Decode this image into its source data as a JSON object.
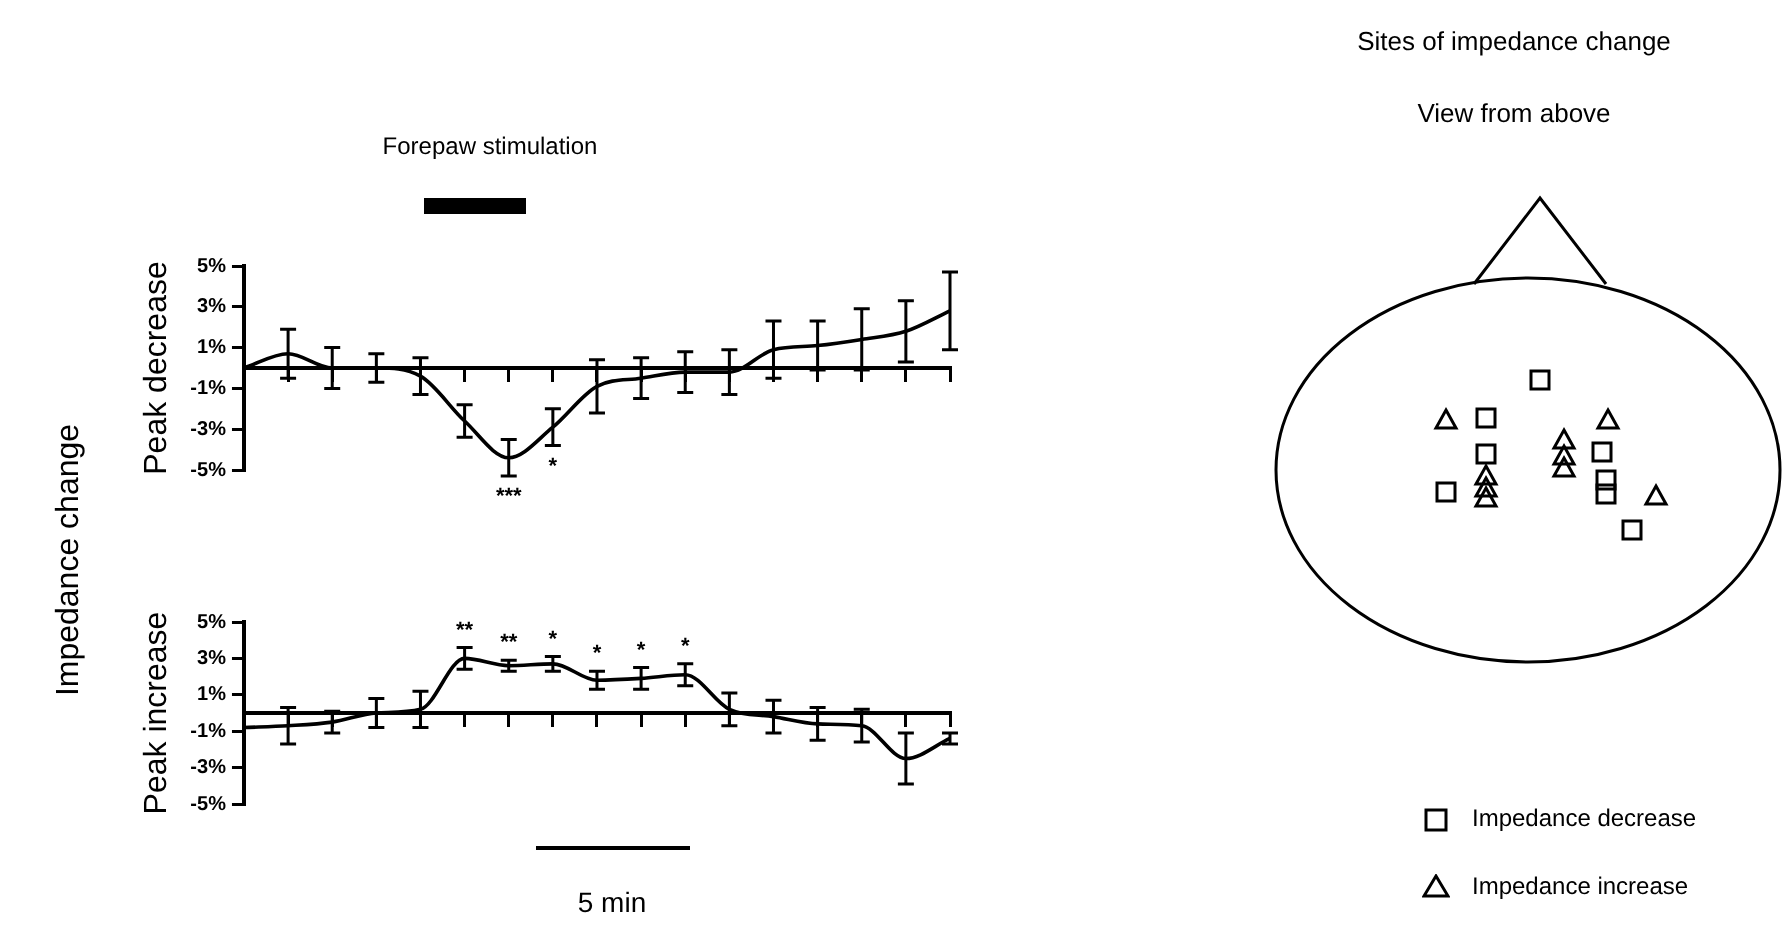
{
  "chart_data": [
    {
      "type": "line",
      "ylabel": "Peak decrease",
      "categories": [
        null,
        null,
        null,
        null,
        null,
        null,
        null,
        null,
        null,
        null,
        null,
        null,
        null,
        null,
        null,
        null,
        null
      ],
      "series": [
        {
          "color": "#000000",
          "values": [
            0,
            0.7,
            0,
            0,
            -0.4,
            -2.6,
            -4.4,
            -2.9,
            -0.9,
            -0.5,
            -0.2,
            -0.2,
            0.9,
            1.1,
            1.4,
            1.8,
            2.8
          ],
          "errors": [
            null,
            1.2,
            1.0,
            0.7,
            0.9,
            0.8,
            0.9,
            0.9,
            1.3,
            1.0,
            1.0,
            1.1,
            1.4,
            1.2,
            1.5,
            1.5,
            1.9
          ],
          "value_labels": [
            null,
            null,
            null,
            null,
            null,
            null,
            "***",
            "*",
            null,
            null,
            null,
            null,
            null,
            null,
            null,
            null,
            null
          ]
        }
      ],
      "ylim": [
        -5,
        5
      ],
      "yticks": [
        {
          "value": 5,
          "label": "5%"
        },
        {
          "value": 3,
          "label": "3%"
        },
        {
          "value": 1,
          "label": "1%"
        },
        {
          "value": -1,
          "label": "-1%"
        },
        {
          "value": -3,
          "label": "-3%"
        },
        {
          "value": -5,
          "label": "-5%"
        }
      ],
      "tick_labels": "y",
      "marker": "none",
      "annotations": [
        "Forepaw stimulation",
        "Impedance change"
      ]
    },
    {
      "type": "line",
      "ylabel": "Peak increase",
      "categories": [
        null,
        null,
        null,
        null,
        null,
        null,
        null,
        null,
        null,
        null,
        null,
        null,
        null,
        null,
        null,
        null,
        null
      ],
      "series": [
        {
          "color": "#000000",
          "values": [
            -0.8,
            -0.7,
            -0.5,
            0,
            0.2,
            3.0,
            2.6,
            2.7,
            1.8,
            1.9,
            2.1,
            0.2,
            -0.2,
            -0.6,
            -0.7,
            -2.5,
            -1.4
          ],
          "errors": [
            null,
            1.0,
            0.6,
            0.8,
            1.0,
            0.6,
            0.3,
            0.4,
            0.5,
            0.6,
            0.6,
            0.9,
            0.9,
            0.9,
            0.9,
            1.4,
            0.3
          ],
          "value_labels": [
            null,
            null,
            null,
            null,
            null,
            "**",
            "**",
            "*",
            "*",
            "*",
            "*",
            null,
            null,
            null,
            null,
            null,
            null
          ]
        }
      ],
      "ylim": [
        -5,
        5
      ],
      "yticks": [
        {
          "value": 5,
          "label": "5%"
        },
        {
          "value": 3,
          "label": "3%"
        },
        {
          "value": 1,
          "label": "1%"
        },
        {
          "value": -1,
          "label": "-1%"
        },
        {
          "value": -3,
          "label": "-3%"
        },
        {
          "value": -5,
          "label": "-5%"
        }
      ],
      "tick_labels": "y",
      "marker": "none",
      "annotations": [
        "5 min"
      ]
    },
    {
      "type": "other",
      "title": "Sites of impedance change",
      "subtitle": "View from above",
      "annotations": [
        "Impedance decrease",
        "Impedance increase"
      ]
    }
  ]
}
